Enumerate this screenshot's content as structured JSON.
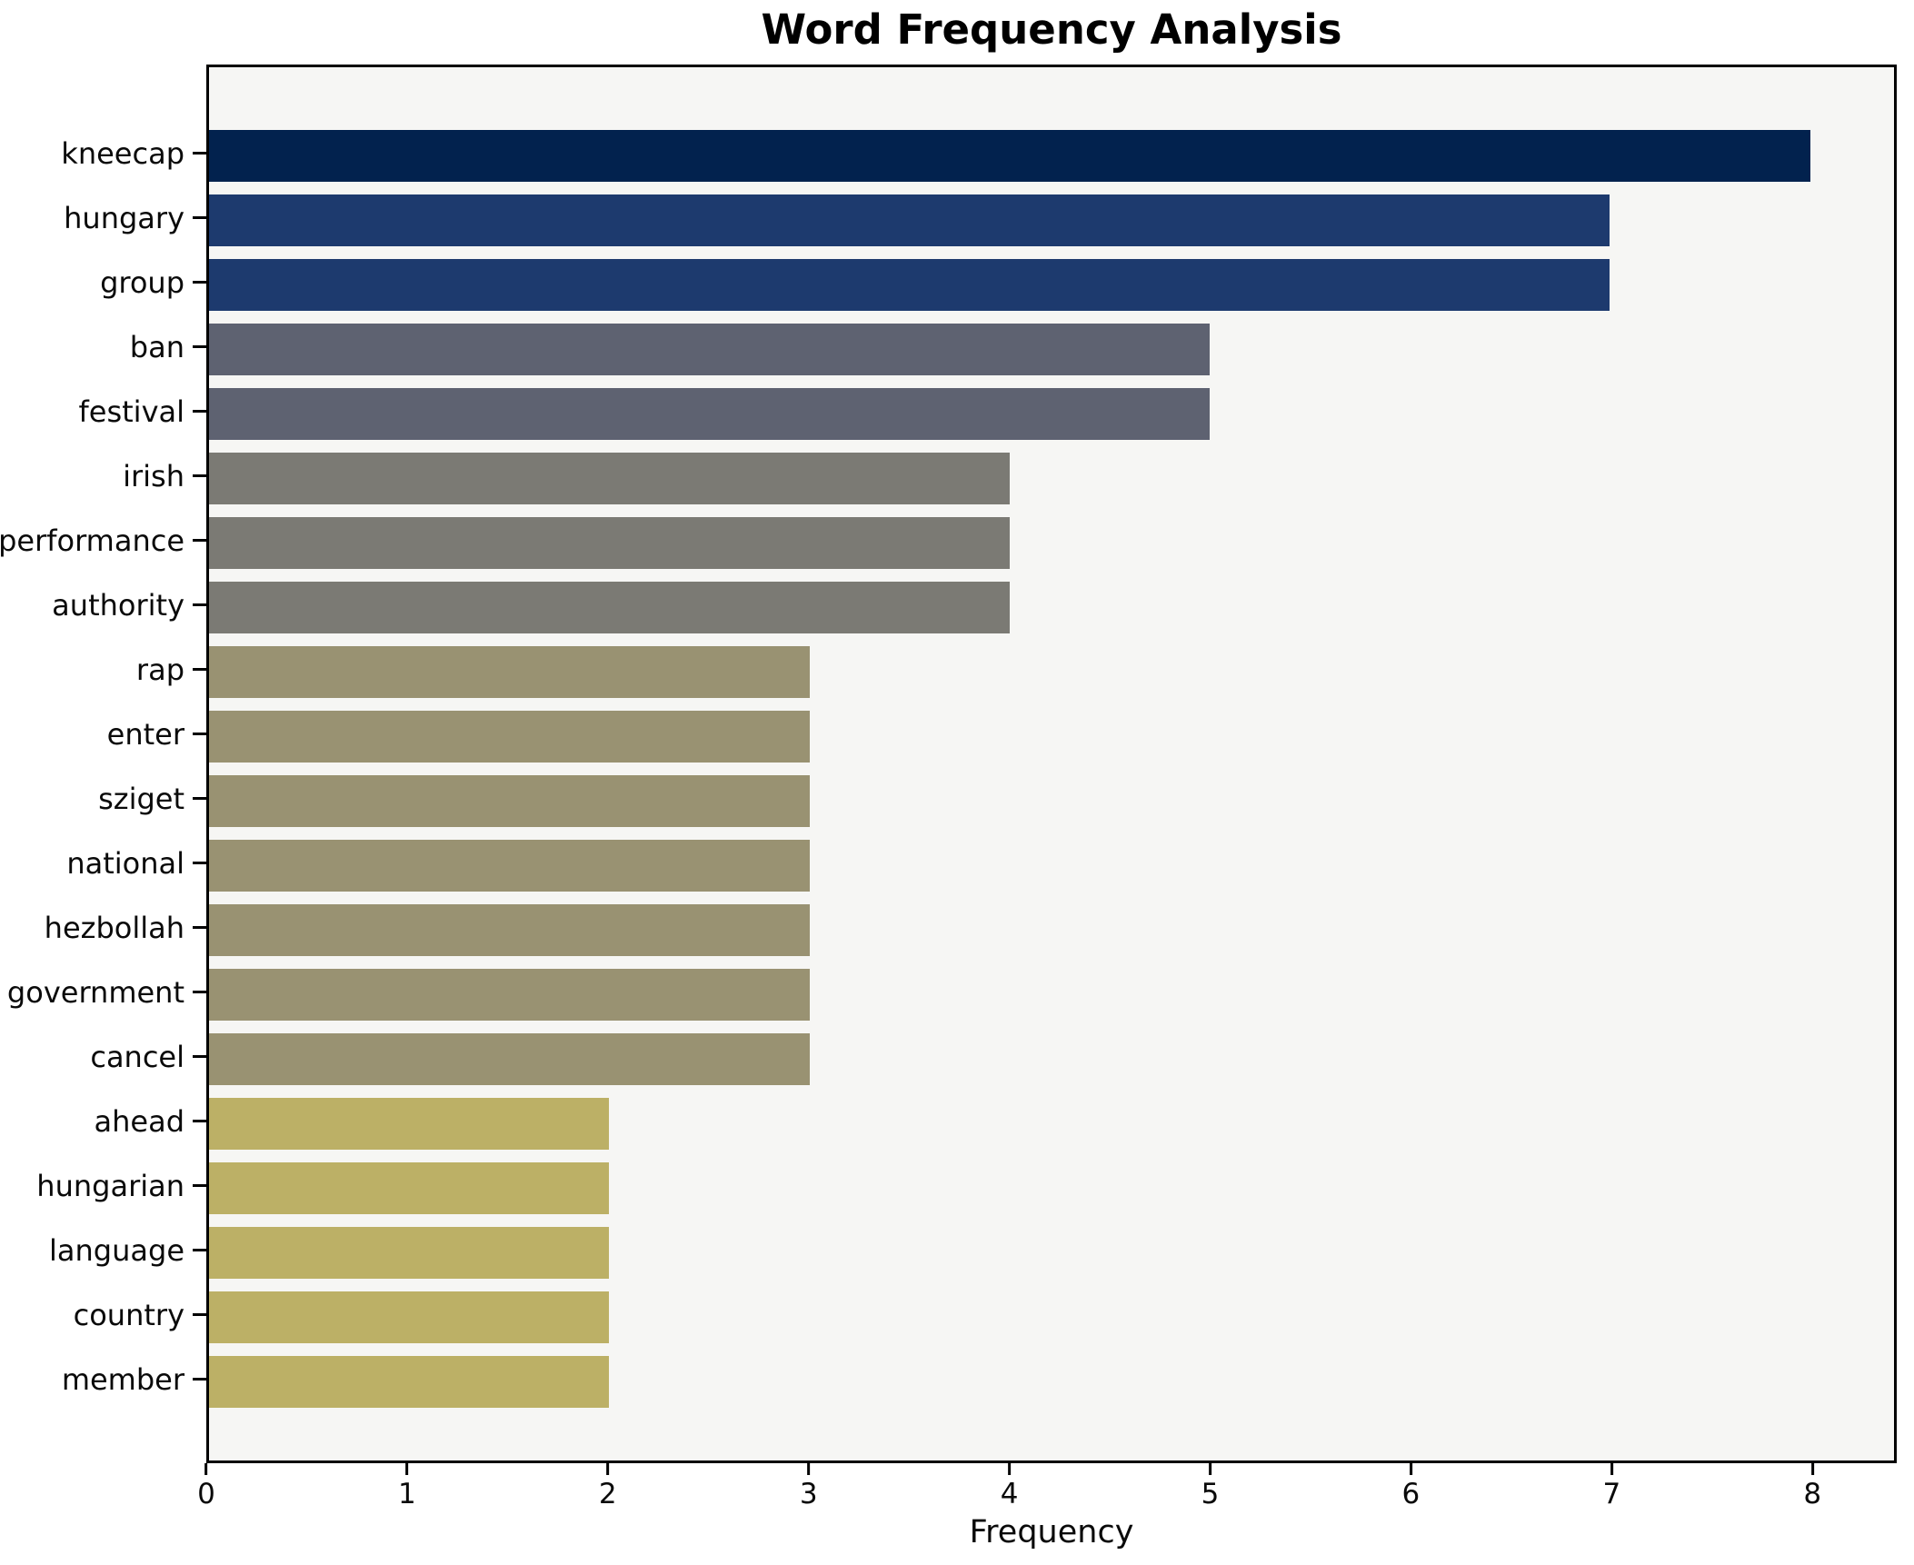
{
  "chart_data": {
    "type": "bar",
    "orientation": "horizontal",
    "title": "Word Frequency Analysis",
    "xlabel": "Frequency",
    "ylabel": "",
    "categories": [
      "kneecap",
      "hungary",
      "group",
      "ban",
      "festival",
      "irish",
      "performance",
      "authority",
      "rap",
      "enter",
      "sziget",
      "national",
      "hezbollah",
      "government",
      "cancel",
      "ahead",
      "hungarian",
      "language",
      "country",
      "member"
    ],
    "values": [
      8,
      7,
      7,
      5,
      5,
      4,
      4,
      4,
      3,
      3,
      3,
      3,
      3,
      3,
      3,
      2,
      2,
      2,
      2,
      2
    ],
    "bar_colors": [
      "#02224e",
      "#1d3a6e",
      "#1d3a6e",
      "#5e6271",
      "#5e6271",
      "#7b7a74",
      "#7b7a74",
      "#7b7a74",
      "#999272",
      "#999272",
      "#999272",
      "#999272",
      "#999272",
      "#999272",
      "#999272",
      "#bcb066",
      "#bcb066",
      "#bcb066",
      "#bcb066",
      "#bcb066"
    ],
    "xticks": [
      0,
      1,
      2,
      3,
      4,
      5,
      6,
      7,
      8
    ],
    "xlim": [
      0,
      8.42
    ],
    "grid": false,
    "legend": null,
    "plot_background": "#f6f6f4",
    "figure_background": "#ffffff",
    "spine_color": "#000000"
  }
}
